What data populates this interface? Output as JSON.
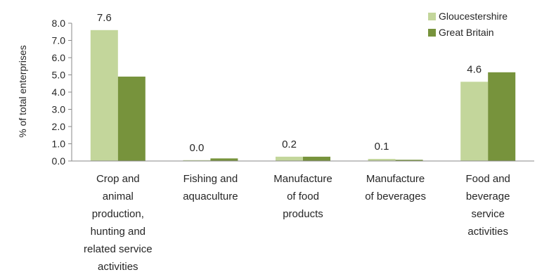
{
  "chart_data": {
    "type": "bar",
    "title": "",
    "xlabel": "",
    "ylabel": "% of total enterprises",
    "ylim": [
      0,
      8
    ],
    "yticks": [
      "0.0",
      "1.0",
      "2.0",
      "3.0",
      "4.0",
      "5.0",
      "6.0",
      "7.0",
      "8.0"
    ],
    "grid": false,
    "legend_position": "top-right",
    "categories": [
      [
        "Crop and",
        "animal",
        "production,",
        "hunting and",
        "related service",
        "activities"
      ],
      [
        "Fishing and",
        "aquaculture"
      ],
      [
        "Manufacture",
        "of food",
        "products"
      ],
      [
        "Manufacture",
        "of beverages"
      ],
      [
        "Food and",
        "beverage",
        "service",
        "activities"
      ]
    ],
    "series": [
      {
        "name": "Gloucestershire",
        "color": "#c3d69b",
        "values": [
          7.6,
          0.05,
          0.25,
          0.12,
          4.6
        ],
        "labels": [
          "7.6",
          "0.0",
          "0.2",
          "0.1",
          "4.6"
        ]
      },
      {
        "name": "Great Britain",
        "color": "#77933c",
        "values": [
          4.9,
          0.15,
          0.25,
          0.07,
          5.15
        ]
      }
    ]
  }
}
